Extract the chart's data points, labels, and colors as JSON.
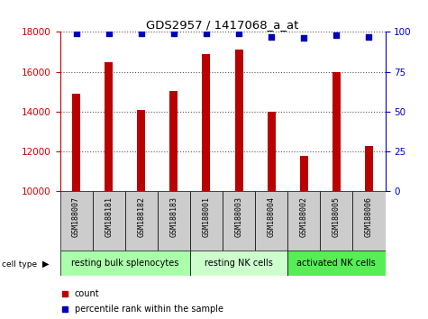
{
  "title": "GDS2957 / 1417068_a_at",
  "samples": [
    "GSM188007",
    "GSM188181",
    "GSM188182",
    "GSM188183",
    "GSM188001",
    "GSM188003",
    "GSM188004",
    "GSM188002",
    "GSM188005",
    "GSM188006"
  ],
  "counts": [
    14900,
    16500,
    14100,
    15050,
    16900,
    17100,
    14000,
    11800,
    16000,
    12300
  ],
  "percentiles": [
    99,
    99,
    99,
    99,
    99,
    99,
    97,
    96,
    98,
    97
  ],
  "ylim_left": [
    10000,
    18000
  ],
  "ylim_right": [
    0,
    100
  ],
  "yticks_left": [
    10000,
    12000,
    14000,
    16000,
    18000
  ],
  "yticks_right": [
    0,
    25,
    50,
    75,
    100
  ],
  "groups": [
    {
      "label": "resting bulk splenocytes",
      "start": 0,
      "end": 4,
      "color": "#aaffaa"
    },
    {
      "label": "resting NK cells",
      "start": 4,
      "end": 7,
      "color": "#ccffcc"
    },
    {
      "label": "activated NK cells",
      "start": 7,
      "end": 10,
      "color": "#55ee55"
    }
  ],
  "bar_color": "#bb0000",
  "dot_color": "#0000bb",
  "tick_label_bg": "#cccccc",
  "left_axis_color": "#cc0000",
  "right_axis_color": "#0000cc",
  "grid_color": "#555555"
}
